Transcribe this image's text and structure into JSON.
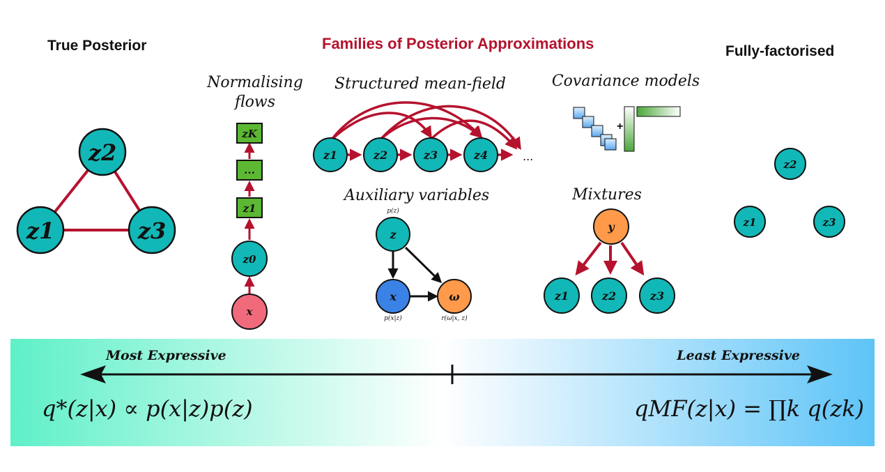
{
  "headings": {
    "true_posterior": "True Posterior",
    "families": "Families of Posterior Approximations",
    "fully_factorised": "Fully-factorised"
  },
  "sections": {
    "normalising_flows_line1": "Normalising",
    "normalising_flows_line2": "flows",
    "structured_mean_field": "Structured mean-field",
    "covariance_models": "Covariance models",
    "auxiliary_variables": "Auxiliary variables",
    "mixtures": "Mixtures"
  },
  "true_posterior_nodes": {
    "z1": "z1",
    "z2": "z2",
    "z3": "z3"
  },
  "flow_nodes": {
    "zK": "zK",
    "dots": "...",
    "z1": "z1",
    "z0": "z0",
    "x": "x"
  },
  "structured_nodes": {
    "z1": "z1",
    "z2": "z2",
    "z3": "z3",
    "z4": "z4",
    "ellipsis": "..."
  },
  "covariance": {
    "plus": "+"
  },
  "auxiliary": {
    "z": "z",
    "x": "x",
    "omega": "ω",
    "pz": "p(z)",
    "pxz": "p(x|z)",
    "rw": "r(ω|x, z)"
  },
  "mixture_nodes": {
    "y": "y",
    "z1": "z1",
    "z2": "z2",
    "z3": "z3"
  },
  "factorised_nodes": {
    "z1": "z1",
    "z2": "z2",
    "z3": "z3"
  },
  "spectrum": {
    "most": "Most Expressive",
    "least": "Least Expressive",
    "left_formula": "q*(z|x) ∝ p(x|z)p(z)",
    "right_formula": "qMF(z|x) = ∏k q(zk)"
  },
  "colors": {
    "teal": "#12b8b8",
    "edge_red": "#b5122e",
    "title_red": "#b5122e",
    "flow_green": "#5cb833",
    "pink": "#f06a7c",
    "blue": "#3b82e6",
    "orange": "#ff9a4a",
    "band_left": "#5ff0c8",
    "band_right": "#5ec4f7"
  }
}
